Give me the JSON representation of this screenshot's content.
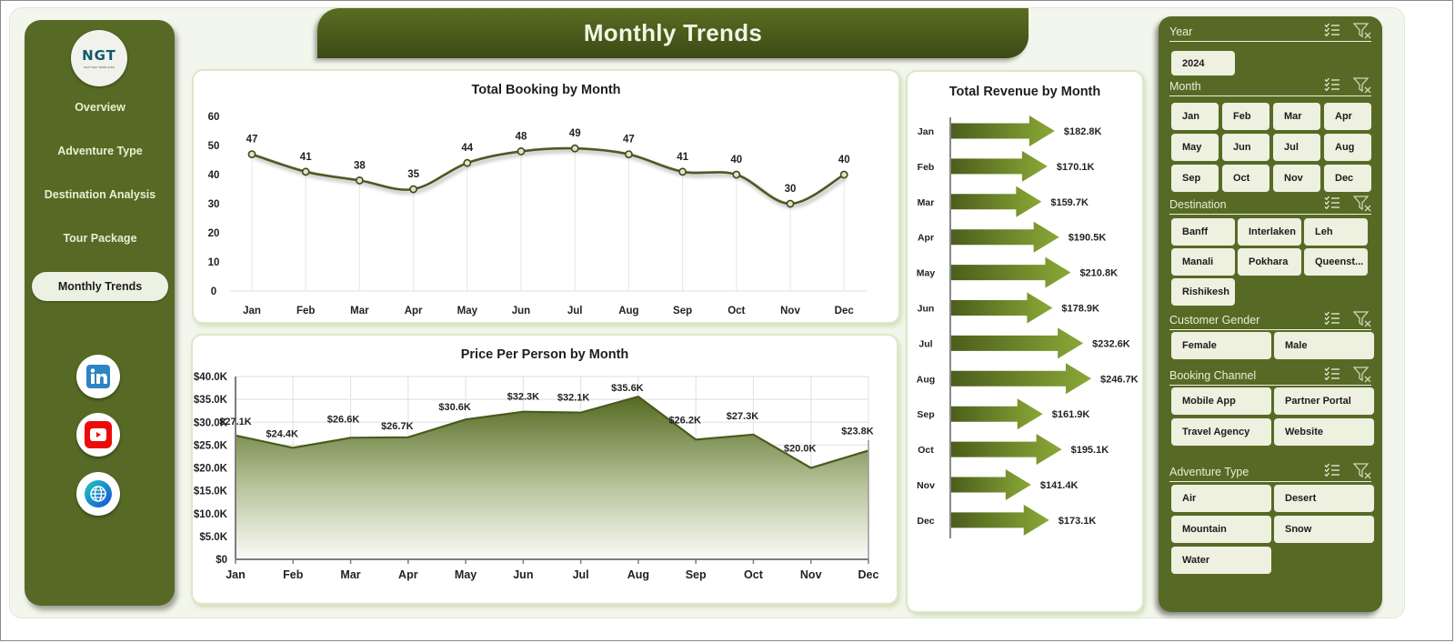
{
  "header": {
    "title": "Monthly Trends"
  },
  "nav": {
    "logo_text": "NGT",
    "logo_subtext": "NEXT GEN TEMPLATES",
    "items": [
      {
        "label": "Overview",
        "active": false
      },
      {
        "label": "Adventure Type",
        "active": false
      },
      {
        "label": "Destination Analysis",
        "active": false
      },
      {
        "label": "Tour Package",
        "active": false
      },
      {
        "label": "Monthly Trends",
        "active": true
      }
    ],
    "social": [
      "linkedin-icon",
      "youtube-icon",
      "globe-icon"
    ]
  },
  "colors": {
    "brand_green": "#566a25",
    "dark_green": "#3b4a16",
    "chip_bg": "#eef0e0",
    "canvas_bg": "#f3f6ec",
    "line_color": "#4d5a23"
  },
  "charts": {
    "booking_title": "Total Booking by Month",
    "price_title": "Price Per Person by Month",
    "revenue_title": "Total Revenue  by Month"
  },
  "chart_data": [
    {
      "type": "line",
      "title": "Total Booking by Month",
      "categories": [
        "Jan",
        "Feb",
        "Mar",
        "Apr",
        "May",
        "Jun",
        "Jul",
        "Aug",
        "Sep",
        "Oct",
        "Nov",
        "Dec"
      ],
      "values": [
        47,
        41,
        38,
        35,
        44,
        48,
        49,
        47,
        41,
        40,
        30,
        40
      ],
      "xlabel": "",
      "ylabel": "",
      "ylim": [
        0,
        60
      ],
      "yticks": [
        0,
        10,
        20,
        30,
        40,
        50,
        60
      ],
      "grid": "vertical",
      "smooth": true,
      "data_labels": true
    },
    {
      "type": "area",
      "title": "Price Per Person by Month",
      "categories": [
        "Jan",
        "Feb",
        "Mar",
        "Apr",
        "May",
        "Jun",
        "Jul",
        "Aug",
        "Sep",
        "Oct",
        "Nov",
        "Dec"
      ],
      "values": [
        27100,
        24400,
        26600,
        26700,
        30600,
        32300,
        32100,
        35600,
        26200,
        27300,
        20000,
        23800
      ],
      "labels": [
        "$27.1K",
        "$24.4K",
        "$26.6K",
        "$26.7K",
        "$30.6K",
        "$32.3K",
        "$32.1K",
        "$35.6K",
        "$26.2K",
        "$27.3K",
        "$20.0K",
        "$23.8K"
      ],
      "ylim": [
        0,
        40000
      ],
      "yticks": [
        "$0",
        "$5.0K",
        "$10.0K",
        "$15.0K",
        "$20.0K",
        "$25.0K",
        "$30.0K",
        "$35.0K",
        "$40.0K"
      ],
      "grid": "both"
    },
    {
      "type": "bar",
      "orientation": "horizontal",
      "title": "Total Revenue  by Month",
      "categories": [
        "Jan",
        "Feb",
        "Mar",
        "Apr",
        "May",
        "Jun",
        "Jul",
        "Aug",
        "Sep",
        "Oct",
        "Nov",
        "Dec"
      ],
      "values": [
        182800,
        170100,
        159700,
        190500,
        210800,
        178900,
        232600,
        246700,
        161900,
        195100,
        141400,
        173100
      ],
      "labels": [
        "$182.8K",
        "$170.1K",
        "$159.7K",
        "$190.5K",
        "$210.8K",
        "$178.9K",
        "$232.6K",
        "$246.7K",
        "$161.9K",
        "$195.1K",
        "$141.4K",
        "$173.1K"
      ],
      "bar_shape": "arrow"
    }
  ],
  "filters": {
    "year": {
      "title": "Year",
      "options": [
        "2024"
      ]
    },
    "month": {
      "title": "Month",
      "options": [
        "Jan",
        "Feb",
        "Mar",
        "Apr",
        "May",
        "Jun",
        "Jul",
        "Aug",
        "Sep",
        "Oct",
        "Nov",
        "Dec"
      ]
    },
    "destination": {
      "title": "Destination",
      "options": [
        "Banff",
        "Interlaken",
        "Leh",
        "Manali",
        "Pokhara",
        "Queenst...",
        "Rishikesh"
      ]
    },
    "gender": {
      "title": "Customer Gender",
      "options": [
        "Female",
        "Male"
      ]
    },
    "channel": {
      "title": "Booking Channel",
      "options": [
        "Mobile App",
        "Partner Portal",
        "Travel Agency",
        "Website"
      ]
    },
    "adventure": {
      "title": "Adventure Type",
      "options": [
        "Air",
        "Desert",
        "Mountain",
        "Snow",
        "Water"
      ]
    }
  }
}
